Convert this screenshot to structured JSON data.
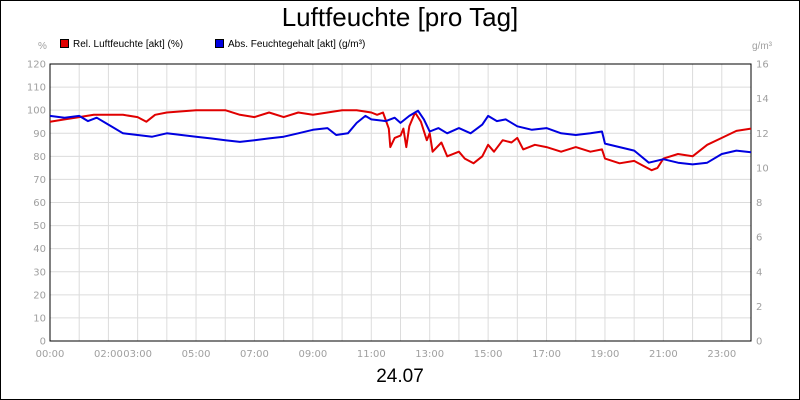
{
  "chart_data": {
    "type": "line",
    "title": "Luftfeuchte [pro Tag]",
    "date_label": "24.07",
    "left_unit": "%",
    "right_unit": "g/m³",
    "left_axis": {
      "min": 0,
      "max": 120,
      "step": 10
    },
    "right_axis": {
      "min": 0,
      "max": 16,
      "step": 2
    },
    "x_range_hours": [
      0,
      24
    ],
    "x_tick_labels": [
      {
        "h": 0,
        "label": "00:00"
      },
      {
        "h": 2,
        "label": "02:00"
      },
      {
        "h": 3,
        "label": "03:00"
      },
      {
        "h": 5,
        "label": "05:00"
      },
      {
        "h": 7,
        "label": "07:00"
      },
      {
        "h": 9,
        "label": "09:00"
      },
      {
        "h": 11,
        "label": "11:00"
      },
      {
        "h": 13,
        "label": "13:00"
      },
      {
        "h": 15,
        "label": "15:00"
      },
      {
        "h": 17,
        "label": "17:00"
      },
      {
        "h": 19,
        "label": "19:00"
      },
      {
        "h": 21,
        "label": "21:00"
      },
      {
        "h": 23,
        "label": "23:00"
      }
    ],
    "grid": true,
    "legend_position": "top-left",
    "series": [
      {
        "name": "Rel. Luftfeuchte [akt] (%)",
        "color": "#e00000",
        "axis": "left",
        "points": [
          [
            0.0,
            95
          ],
          [
            0.5,
            96
          ],
          [
            1.0,
            97
          ],
          [
            1.5,
            98
          ],
          [
            2.0,
            98
          ],
          [
            2.5,
            98
          ],
          [
            3.0,
            97
          ],
          [
            3.3,
            95
          ],
          [
            3.6,
            98
          ],
          [
            4.0,
            99
          ],
          [
            5.0,
            100
          ],
          [
            6.0,
            100
          ],
          [
            6.5,
            98
          ],
          [
            7.0,
            97
          ],
          [
            7.5,
            99
          ],
          [
            8.0,
            97
          ],
          [
            8.5,
            99
          ],
          [
            9.0,
            98
          ],
          [
            9.5,
            99
          ],
          [
            10.0,
            100
          ],
          [
            10.5,
            100
          ],
          [
            11.0,
            99
          ],
          [
            11.2,
            98
          ],
          [
            11.4,
            99
          ],
          [
            11.6,
            92
          ],
          [
            11.65,
            84
          ],
          [
            11.8,
            88
          ],
          [
            12.0,
            89
          ],
          [
            12.1,
            92
          ],
          [
            12.2,
            84
          ],
          [
            12.3,
            93
          ],
          [
            12.5,
            99
          ],
          [
            12.7,
            95
          ],
          [
            12.9,
            87
          ],
          [
            13.0,
            90
          ],
          [
            13.1,
            82
          ],
          [
            13.4,
            86
          ],
          [
            13.6,
            80
          ],
          [
            14.0,
            82
          ],
          [
            14.2,
            79
          ],
          [
            14.5,
            77
          ],
          [
            14.8,
            80
          ],
          [
            15.0,
            85
          ],
          [
            15.2,
            82
          ],
          [
            15.5,
            87
          ],
          [
            15.8,
            86
          ],
          [
            16.0,
            88
          ],
          [
            16.2,
            83
          ],
          [
            16.6,
            85
          ],
          [
            17.0,
            84
          ],
          [
            17.5,
            82
          ],
          [
            18.0,
            84
          ],
          [
            18.5,
            82
          ],
          [
            18.9,
            83
          ],
          [
            19.0,
            79
          ],
          [
            19.5,
            77
          ],
          [
            20.0,
            78
          ],
          [
            20.3,
            76
          ],
          [
            20.6,
            74
          ],
          [
            20.8,
            75
          ],
          [
            21.0,
            79
          ],
          [
            21.5,
            81
          ],
          [
            22.0,
            80
          ],
          [
            22.5,
            85
          ],
          [
            23.0,
            88
          ],
          [
            23.5,
            91
          ],
          [
            24.0,
            92
          ]
        ]
      },
      {
        "name": "Abs. Feuchtegehalt [akt] (g/m³)",
        "color": "#0000e0",
        "axis": "right",
        "points": [
          [
            0.0,
            13.0
          ],
          [
            0.5,
            12.9
          ],
          [
            1.0,
            13.0
          ],
          [
            1.3,
            12.7
          ],
          [
            1.6,
            12.9
          ],
          [
            2.0,
            12.5
          ],
          [
            2.5,
            12.0
          ],
          [
            3.0,
            11.9
          ],
          [
            3.5,
            11.8
          ],
          [
            4.0,
            12.0
          ],
          [
            4.5,
            11.9
          ],
          [
            5.0,
            11.8
          ],
          [
            5.5,
            11.7
          ],
          [
            6.0,
            11.6
          ],
          [
            6.5,
            11.5
          ],
          [
            7.0,
            11.6
          ],
          [
            7.5,
            11.7
          ],
          [
            8.0,
            11.8
          ],
          [
            8.5,
            12.0
          ],
          [
            9.0,
            12.2
          ],
          [
            9.5,
            12.3
          ],
          [
            9.8,
            11.9
          ],
          [
            10.2,
            12.0
          ],
          [
            10.5,
            12.6
          ],
          [
            10.8,
            13.0
          ],
          [
            11.0,
            12.8
          ],
          [
            11.5,
            12.7
          ],
          [
            11.8,
            12.9
          ],
          [
            12.0,
            12.6
          ],
          [
            12.3,
            13.0
          ],
          [
            12.6,
            13.3
          ],
          [
            12.8,
            12.8
          ],
          [
            13.0,
            12.1
          ],
          [
            13.3,
            12.3
          ],
          [
            13.6,
            12.0
          ],
          [
            14.0,
            12.3
          ],
          [
            14.4,
            12.0
          ],
          [
            14.8,
            12.5
          ],
          [
            15.0,
            13.0
          ],
          [
            15.3,
            12.7
          ],
          [
            15.6,
            12.8
          ],
          [
            16.0,
            12.4
          ],
          [
            16.5,
            12.2
          ],
          [
            17.0,
            12.3
          ],
          [
            17.5,
            12.0
          ],
          [
            18.0,
            11.9
          ],
          [
            18.5,
            12.0
          ],
          [
            18.9,
            12.1
          ],
          [
            19.0,
            11.4
          ],
          [
            19.5,
            11.2
          ],
          [
            20.0,
            11.0
          ],
          [
            20.5,
            10.3
          ],
          [
            21.0,
            10.5
          ],
          [
            21.5,
            10.3
          ],
          [
            22.0,
            10.2
          ],
          [
            22.5,
            10.3
          ],
          [
            23.0,
            10.8
          ],
          [
            23.5,
            11.0
          ],
          [
            24.0,
            10.9
          ]
        ]
      }
    ]
  }
}
